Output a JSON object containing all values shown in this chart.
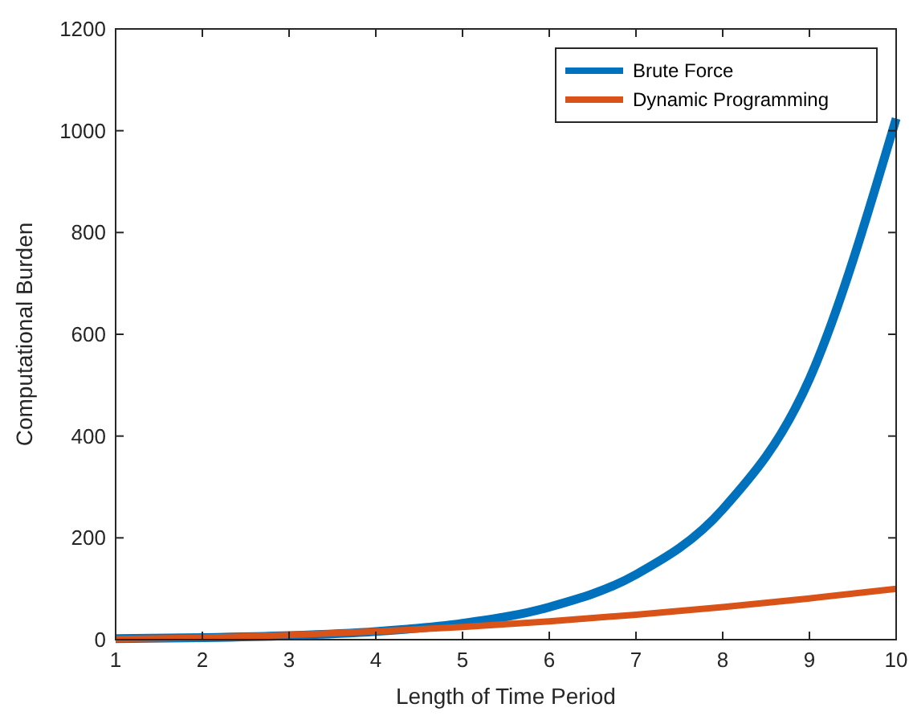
{
  "chart_data": {
    "type": "line",
    "xlabel": "Length of Time Period",
    "ylabel": "Computational Burden",
    "x": [
      1,
      2,
      3,
      4,
      5,
      6,
      7,
      8,
      9,
      10
    ],
    "series": [
      {
        "name": "Brute Force",
        "color": "#0072bd",
        "values": [
          2,
          4,
          8,
          16,
          32,
          64,
          128,
          256,
          512,
          1024
        ]
      },
      {
        "name": "Dynamic Programming",
        "color": "#d95319",
        "values": [
          1,
          4,
          9,
          16,
          25,
          36,
          49,
          64,
          81,
          100
        ]
      }
    ],
    "xlim": [
      1,
      10
    ],
    "xticks": [
      1,
      2,
      3,
      4,
      5,
      6,
      7,
      8,
      9,
      10
    ],
    "ylim": [
      0,
      1200
    ],
    "yticks": [
      0,
      200,
      400,
      600,
      800,
      1000,
      1200
    ],
    "legend": "top right",
    "grid": false,
    "marker": "none",
    "line_style": "solid"
  }
}
